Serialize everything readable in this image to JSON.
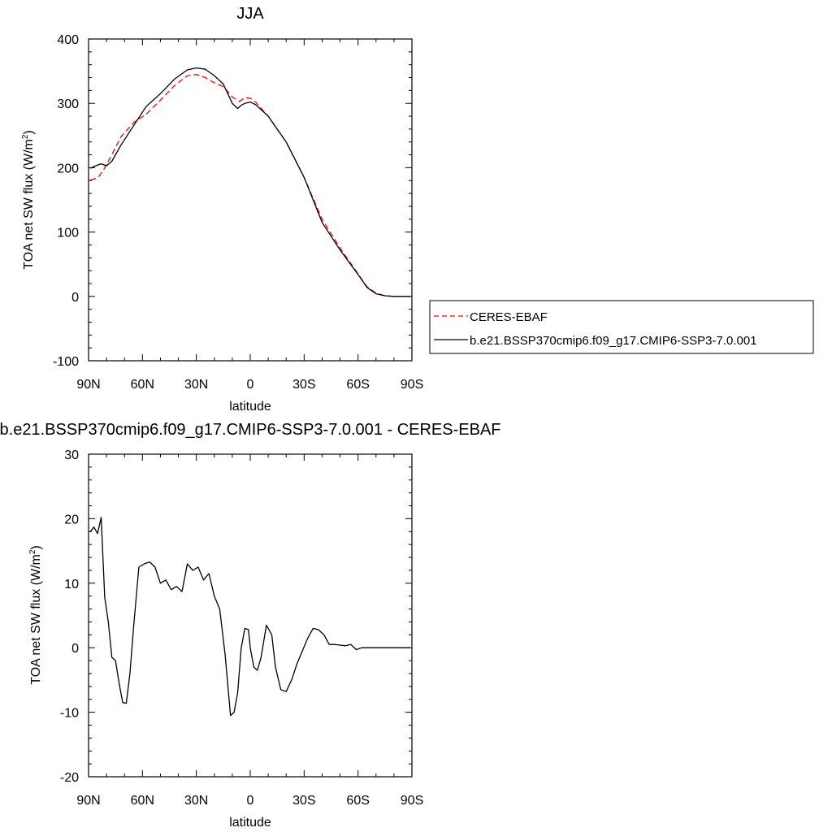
{
  "chart_data": [
    {
      "type": "line",
      "title": "JJA",
      "xlabel": "latitude",
      "ylabel": "TOA net SW flux (W/m",
      "ylabel_sup": "2",
      "ylabel_close": ")",
      "xlim": [
        90,
        -90
      ],
      "ylim": [
        -100,
        400
      ],
      "xticks": [
        {
          "v": 90,
          "label": "90N"
        },
        {
          "v": 60,
          "label": "60N"
        },
        {
          "v": 30,
          "label": "30N"
        },
        {
          "v": 0,
          "label": "0"
        },
        {
          "v": -30,
          "label": "30S"
        },
        {
          "v": -60,
          "label": "60S"
        },
        {
          "v": -90,
          "label": "90S"
        }
      ],
      "yticks": [
        {
          "v": 400,
          "label": "400"
        },
        {
          "v": 300,
          "label": "300"
        },
        {
          "v": 200,
          "label": "200"
        },
        {
          "v": 100,
          "label": "100"
        },
        {
          "v": 0,
          "label": "0"
        },
        {
          "v": -100,
          "label": "-100"
        }
      ],
      "legend": "right",
      "series": [
        {
          "name": "CERES-EBAF",
          "color": "#ff0000",
          "dash": true,
          "x": [
            89,
            85,
            82,
            78,
            72,
            65,
            58,
            50,
            42,
            35,
            30,
            25,
            20,
            15,
            10,
            6,
            3,
            0,
            -3,
            -10,
            -20,
            -30,
            -40,
            -50,
            -60,
            -65,
            -70,
            -75,
            -80,
            -85,
            -89
          ],
          "y": [
            181,
            184,
            195,
            215,
            248,
            270,
            283,
            305,
            328,
            343,
            345,
            340,
            332,
            326,
            310,
            303,
            309,
            308,
            302,
            280,
            240,
            185,
            120,
            75,
            35,
            15,
            5,
            1,
            0,
            0,
            0
          ]
        },
        {
          "name": "b.e21.BSSP370cmip6.f09_g17.CMIP6-SSP3-7.0.001",
          "color": "#000000",
          "dash": false,
          "x": [
            89,
            86,
            83,
            80,
            77,
            72,
            65,
            58,
            50,
            42,
            35,
            30,
            25,
            20,
            15,
            10,
            7,
            5,
            3,
            0,
            -3,
            -10,
            -20,
            -30,
            -40,
            -50,
            -60,
            -65,
            -70,
            -75,
            -80,
            -85,
            -89
          ],
          "y": [
            199,
            203,
            206,
            203,
            210,
            235,
            265,
            295,
            315,
            338,
            352,
            355,
            353,
            343,
            330,
            300,
            292,
            297,
            300,
            302,
            298,
            280,
            240,
            185,
            115,
            72,
            34,
            14,
            4,
            1,
            0,
            0,
            0
          ]
        }
      ]
    },
    {
      "type": "line",
      "title": "b.e21.BSSP370cmip6.f09_g17.CMIP6-SSP3-7.0.001 - CERES-EBAF",
      "xlabel": "latitude",
      "ylabel": "TOA net SW flux (W/m",
      "ylabel_sup": "2",
      "ylabel_close": ")",
      "xlim": [
        90,
        -90
      ],
      "ylim": [
        -20,
        30
      ],
      "xticks": [
        {
          "v": 90,
          "label": "90N"
        },
        {
          "v": 60,
          "label": "60N"
        },
        {
          "v": 30,
          "label": "30N"
        },
        {
          "v": 0,
          "label": "0"
        },
        {
          "v": -30,
          "label": "30S"
        },
        {
          "v": -60,
          "label": "60S"
        },
        {
          "v": -90,
          "label": "90S"
        }
      ],
      "yticks": [
        {
          "v": 30,
          "label": "30"
        },
        {
          "v": 20,
          "label": "20"
        },
        {
          "v": 10,
          "label": "10"
        },
        {
          "v": 0,
          "label": "0"
        },
        {
          "v": -10,
          "label": "-10"
        },
        {
          "v": -20,
          "label": "-20"
        }
      ],
      "series": [
        {
          "name": "",
          "color": "#000000",
          "dash": false,
          "x": [
            89,
            87,
            85,
            83,
            81,
            79,
            77,
            75,
            73,
            71,
            69,
            67,
            65,
            62,
            59,
            56,
            53,
            50,
            47,
            44,
            41,
            38,
            35,
            32,
            29,
            26,
            23,
            20,
            17,
            14,
            11,
            9,
            7,
            5,
            3,
            1,
            0,
            -2,
            -4,
            -6,
            -9,
            -12,
            -14,
            -17,
            -20,
            -23,
            -26,
            -29,
            -32,
            -35,
            -38,
            -41,
            -44,
            -47,
            -50,
            -53,
            -56,
            -59,
            -62,
            -64,
            -67,
            -70,
            -73,
            -76,
            -79,
            -80,
            -82,
            -85,
            -89
          ],
          "y": [
            18,
            18.7,
            17.7,
            20.2,
            7.8,
            4,
            -1.5,
            -2,
            -5.5,
            -8.5,
            -8.6,
            -4,
            3,
            12.5,
            13,
            13.3,
            12.5,
            10,
            10.5,
            9,
            9.5,
            8.7,
            13,
            12,
            12.5,
            10.5,
            11.5,
            8,
            6,
            -1,
            -10.5,
            -10,
            -7,
            0,
            3,
            2.8,
            0,
            -3,
            -3.5,
            -1.5,
            3.5,
            2,
            -3,
            -6.5,
            -6.8,
            -5,
            -2.5,
            -0.5,
            1.5,
            3,
            2.8,
            2,
            0.5,
            0.5,
            0.4,
            0.3,
            0.5,
            -0.3,
            0,
            0,
            0,
            0,
            0,
            0,
            0,
            0,
            0,
            0,
            0
          ]
        }
      ]
    }
  ]
}
